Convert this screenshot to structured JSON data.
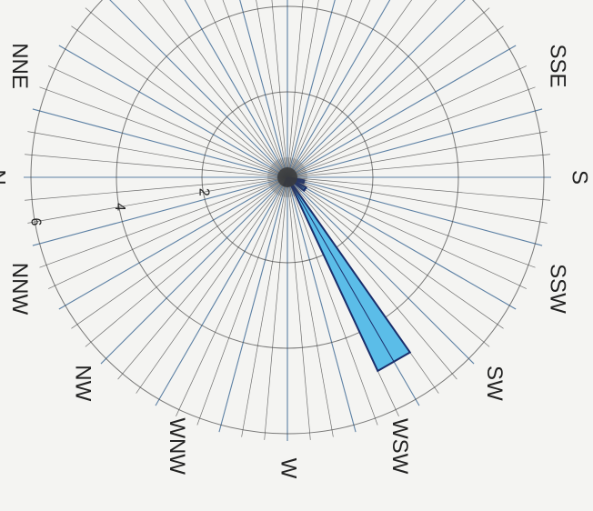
{
  "chart_data": {
    "type": "wind-rose",
    "orientation": "rotated 90 degrees clockwise (north points left)",
    "rings": [
      2,
      4,
      6
    ],
    "ring_labels": [
      "2",
      "4",
      "6"
    ],
    "directions": [
      {
        "label": "N",
        "bearing": 0
      },
      {
        "label": "NNE",
        "bearing": 22.5
      },
      {
        "label": "SSE",
        "bearing": 157.5
      },
      {
        "label": "S",
        "bearing": 180
      },
      {
        "label": "SSW",
        "bearing": 202.5
      },
      {
        "label": "SW",
        "bearing": 225
      },
      {
        "label": "WSW",
        "bearing": 247.5
      },
      {
        "label": "W",
        "bearing": 270
      },
      {
        "label": "WNW",
        "bearing": 292.5
      },
      {
        "label": "NW",
        "bearing": 315
      },
      {
        "label": "NNW",
        "bearing": 337.5
      }
    ],
    "bars": [
      {
        "bearing": 195,
        "value": 0.4
      },
      {
        "bearing": 214,
        "value": 0.5
      },
      {
        "bearing": 240,
        "value": 5.0
      },
      {
        "bearing": 262,
        "value": 0.2
      },
      {
        "bearing": 290,
        "value": 0.2
      }
    ],
    "bar_width_deg": 10,
    "spoke_count": 72,
    "bar_color": "#5bbde8",
    "bar_edge_color": "#1a2e6b",
    "grid_color": "#444444"
  }
}
